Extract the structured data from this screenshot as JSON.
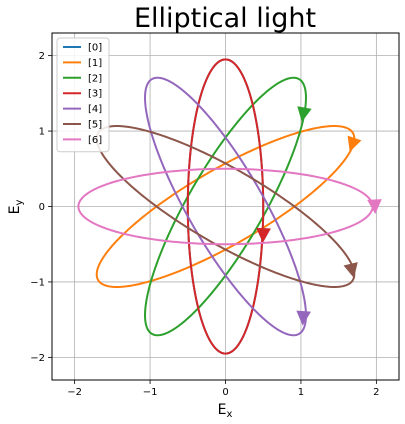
{
  "chart_data": {
    "type": "line",
    "title": "Elliptical light",
    "xlabel": "E_x",
    "ylabel": "E_y",
    "xlim": [
      -2.3,
      2.3
    ],
    "ylim": [
      -2.3,
      2.3
    ],
    "xticks": [
      -2,
      -1,
      0,
      1,
      2
    ],
    "yticks": [
      -2,
      -1,
      0,
      1,
      2
    ],
    "grid": true,
    "legend_position": "top-left",
    "series": [
      {
        "name": "[0]",
        "color": "#1f77b4",
        "semi_major": 1.95,
        "semi_minor": 0.5,
        "angle_deg": 90,
        "arrow_at": [
          0.5,
          -0.38
        ]
      },
      {
        "name": "[1]",
        "color": "#ff7f0e",
        "semi_major": 1.95,
        "semi_minor": 0.5,
        "angle_deg": 30,
        "arrow_at": [
          1.68,
          0.82
        ]
      },
      {
        "name": "[2]",
        "color": "#2ca02c",
        "semi_major": 1.95,
        "semi_minor": 0.5,
        "angle_deg": 60,
        "arrow_at": [
          1.03,
          1.22
        ]
      },
      {
        "name": "[3]",
        "color": "#d62728",
        "semi_major": 1.95,
        "semi_minor": 0.5,
        "angle_deg": 90,
        "arrow_at": [
          0.5,
          -0.38
        ]
      },
      {
        "name": "[4]",
        "color": "#9467bd",
        "semi_major": 1.95,
        "semi_minor": 0.5,
        "angle_deg": 120,
        "arrow_at": [
          1.03,
          -1.48
        ]
      },
      {
        "name": "[5]",
        "color": "#8c564b",
        "semi_major": 1.95,
        "semi_minor": 0.5,
        "angle_deg": 150,
        "arrow_at": [
          1.68,
          -0.85
        ]
      },
      {
        "name": "[6]",
        "color": "#e377c2",
        "semi_major": 1.95,
        "semi_minor": 0.5,
        "angle_deg": 0,
        "arrow_at": [
          1.98,
          0.0
        ]
      }
    ]
  }
}
